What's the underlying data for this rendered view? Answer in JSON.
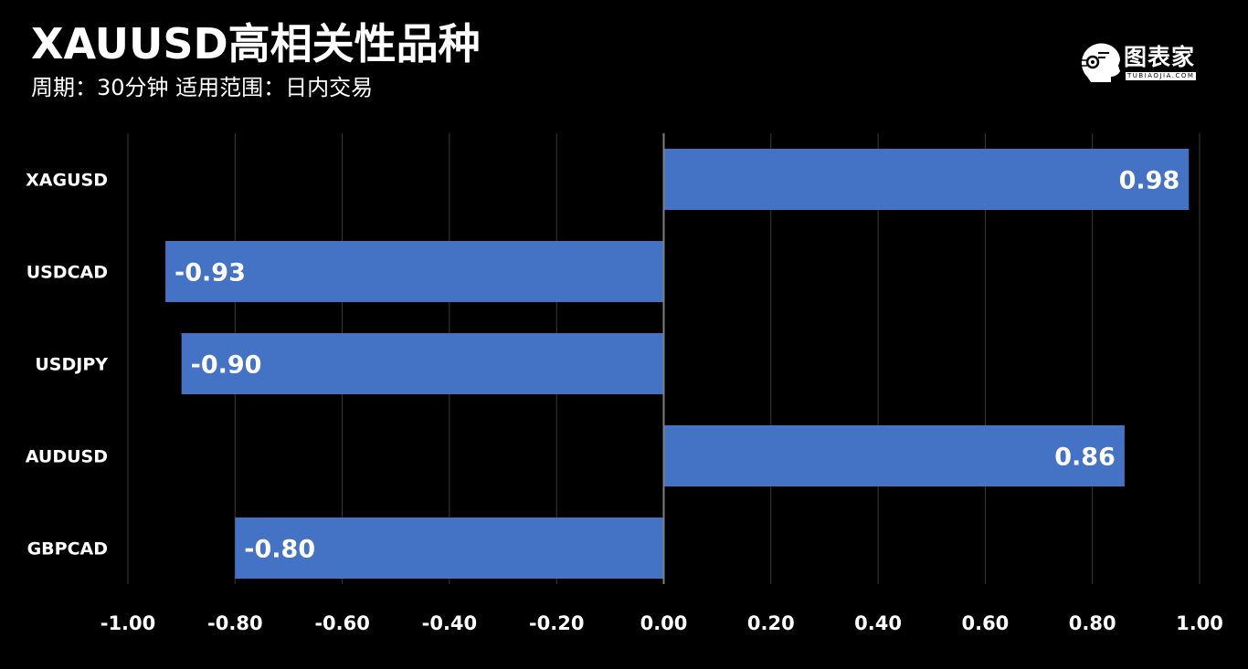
{
  "header": {
    "title": "XAUUSD高相关性品种",
    "subtitle": "周期：30分钟  适用范围：日内交易"
  },
  "logo": {
    "text": "图表家",
    "sub": "TUBIAOJIA.COM",
    "icon": "robot-head-icon"
  },
  "colors": {
    "background": "#000000",
    "bar": "#4472c4",
    "grid": "#3a3a3a",
    "zero_line": "#7f7f7f",
    "text": "#ffffff"
  },
  "chart_data": {
    "type": "bar",
    "orientation": "horizontal",
    "categories": [
      "XAGUSD",
      "USDCAD",
      "USDJPY",
      "AUDUSD",
      "GBPCAD"
    ],
    "values": [
      0.98,
      -0.93,
      -0.9,
      0.86,
      -0.8
    ],
    "value_labels": [
      "0.98",
      "-0.93",
      "-0.90",
      "0.86",
      "-0.80"
    ],
    "xlim": [
      -1.0,
      1.0
    ],
    "xticks": [
      -1.0,
      -0.8,
      -0.6,
      -0.4,
      -0.2,
      0.0,
      0.2,
      0.4,
      0.6,
      0.8,
      1.0
    ],
    "xtick_labels": [
      "-1.00",
      "-0.80",
      "-0.60",
      "-0.40",
      "-0.20",
      "0.00",
      "0.20",
      "0.40",
      "0.60",
      "0.80",
      "1.00"
    ],
    "grid": "vertical",
    "legend": "none"
  }
}
